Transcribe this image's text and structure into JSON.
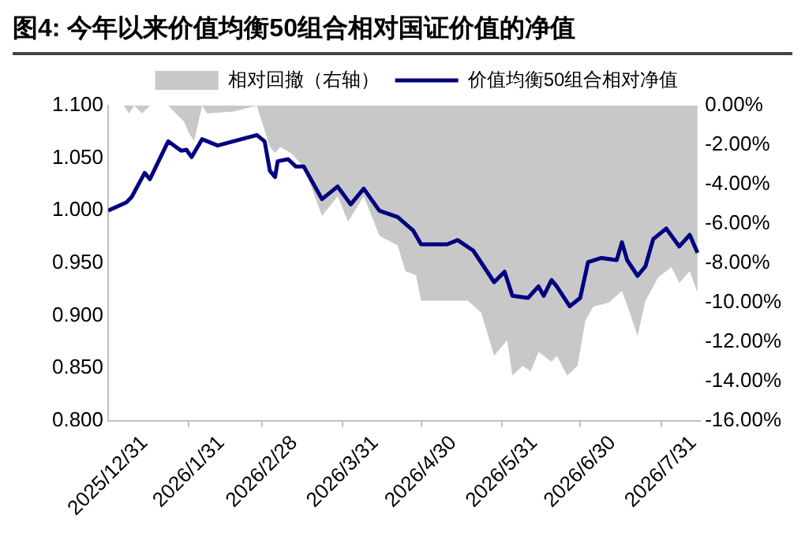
{
  "chart_data": {
    "type": "line",
    "title": "图4: 今年以来价值均衡50组合相对国证价值的净值",
    "legend": "top",
    "grid": false,
    "marker": "none",
    "xlim": [
      "2025-12-31",
      "2026-08-15"
    ],
    "xticks": [
      {
        "value": "2025-12-31",
        "label": "2025/12/31"
      },
      {
        "value": "2026-01-31",
        "label": "2026/1/31"
      },
      {
        "value": "2026-02-28",
        "label": "2026/2/28"
      },
      {
        "value": "2026-03-31",
        "label": "2026/3/31"
      },
      {
        "value": "2026-04-30",
        "label": "2026/4/30"
      },
      {
        "value": "2026-05-31",
        "label": "2026/5/31"
      },
      {
        "value": "2026-06-30",
        "label": "2026/6/30"
      },
      {
        "value": "2026-07-31",
        "label": "2026/7/31"
      }
    ],
    "ylim": [
      0.8,
      1.1
    ],
    "yticks": [
      {
        "value": 0.8,
        "label": "0.800"
      },
      {
        "value": 0.85,
        "label": "0.850"
      },
      {
        "value": 0.9,
        "label": "0.900"
      },
      {
        "value": 0.95,
        "label": "0.950"
      },
      {
        "value": 1.0,
        "label": "1.000"
      },
      {
        "value": 1.05,
        "label": "1.050"
      },
      {
        "value": 1.1,
        "label": "1.100"
      }
    ],
    "y2lim": [
      -16,
      0
    ],
    "y2ticks": [
      {
        "value": 0,
        "label": "0.00%"
      },
      {
        "value": -2,
        "label": "-2.00%"
      },
      {
        "value": -4,
        "label": "-4.00%"
      },
      {
        "value": -6,
        "label": "-6.00%"
      },
      {
        "value": -8,
        "label": "-8.00%"
      },
      {
        "value": -10,
        "label": "-10.00%"
      },
      {
        "value": -12,
        "label": "-12.00%"
      },
      {
        "value": -14,
        "label": "-14.00%"
      },
      {
        "value": -16,
        "label": "-16.00%"
      }
    ],
    "series": [
      {
        "name": "相对回撤（右轴）",
        "type": "area",
        "axis": "y2",
        "color": "#c8c8c8",
        "x": [
          "2025-12-31",
          "2026-01-06",
          "2026-01-08",
          "2026-01-10",
          "2026-01-13",
          "2026-01-16",
          "2026-01-23",
          "2026-01-29",
          "2026-01-31",
          "2026-02-02",
          "2026-02-05",
          "2026-02-07",
          "2026-02-17",
          "2026-02-26",
          "2026-03-03",
          "2026-03-05",
          "2026-03-07",
          "2026-03-11",
          "2026-03-16",
          "2026-03-23",
          "2026-03-29",
          "2026-04-02",
          "2026-04-08",
          "2026-04-14",
          "2026-04-21",
          "2026-04-24",
          "2026-04-28",
          "2026-04-30",
          "2026-05-12",
          "2026-05-18",
          "2026-05-23",
          "2026-05-28",
          "2026-06-02",
          "2026-06-04",
          "2026-06-08",
          "2026-06-11",
          "2026-06-14",
          "2026-06-19",
          "2026-06-21",
          "2026-06-25",
          "2026-06-29",
          "2026-07-02",
          "2026-07-05",
          "2026-07-11",
          "2026-07-16",
          "2026-07-19",
          "2026-07-22",
          "2026-07-25",
          "2026-07-30",
          "2026-08-04",
          "2026-08-07",
          "2026-08-11",
          "2026-08-14"
        ],
        "values": [
          0,
          0,
          -0.4,
          0,
          -0.4,
          0,
          0,
          -0.8,
          -1.4,
          -1.8,
          0,
          -0.4,
          -0.3,
          0,
          -2.1,
          -2.4,
          -2.1,
          -2.4,
          -3.1,
          -5.6,
          -4.6,
          -5.9,
          -4.6,
          -6.6,
          -7.1,
          -8.4,
          -8.6,
          -9.9,
          -9.9,
          -9.9,
          -10.5,
          -12.7,
          -11.9,
          -13.7,
          -13.2,
          -13.5,
          -12.5,
          -13.0,
          -12.7,
          -13.7,
          -13.2,
          -10.9,
          -10.2,
          -10.0,
          -9.4,
          -10.5,
          -11.7,
          -9.9,
          -8.7,
          -8.2,
          -9.0,
          -8.4,
          -9.5
        ]
      },
      {
        "name": "价值均衡50组合相对净值",
        "type": "line",
        "axis": "y",
        "color": "#000080",
        "x": [
          "2025-12-31",
          "2026-01-07",
          "2026-01-09",
          "2026-01-14",
          "2026-01-16",
          "2026-01-23",
          "2026-01-28",
          "2026-01-30",
          "2026-02-01",
          "2026-02-05",
          "2026-02-11",
          "2026-02-26",
          "2026-03-01",
          "2026-03-03",
          "2026-03-05",
          "2026-03-06",
          "2026-03-10",
          "2026-03-13",
          "2026-03-16",
          "2026-03-23",
          "2026-03-29",
          "2026-04-03",
          "2026-04-08",
          "2026-04-14",
          "2026-04-21",
          "2026-04-27",
          "2026-04-30",
          "2026-05-10",
          "2026-05-14",
          "2026-05-20",
          "2026-05-28",
          "2026-06-01",
          "2026-06-04",
          "2026-06-10",
          "2026-06-14",
          "2026-06-16",
          "2026-06-19",
          "2026-06-21",
          "2026-06-26",
          "2026-06-30",
          "2026-07-03",
          "2026-07-08",
          "2026-07-14",
          "2026-07-16",
          "2026-07-18",
          "2026-07-22",
          "2026-07-25",
          "2026-07-28",
          "2026-08-02",
          "2026-08-07",
          "2026-08-11",
          "2026-08-14"
        ],
        "values": [
          1.0,
          1.008,
          1.013,
          1.036,
          1.03,
          1.066,
          1.057,
          1.058,
          1.051,
          1.068,
          1.062,
          1.072,
          1.066,
          1.038,
          1.032,
          1.047,
          1.049,
          1.042,
          1.042,
          1.011,
          1.023,
          1.006,
          1.021,
          1.0,
          0.994,
          0.981,
          0.968,
          0.968,
          0.972,
          0.962,
          0.932,
          0.942,
          0.919,
          0.917,
          0.928,
          0.919,
          0.934,
          0.928,
          0.909,
          0.917,
          0.951,
          0.955,
          0.953,
          0.97,
          0.953,
          0.938,
          0.947,
          0.973,
          0.983,
          0.966,
          0.977,
          0.96
        ]
      }
    ]
  }
}
